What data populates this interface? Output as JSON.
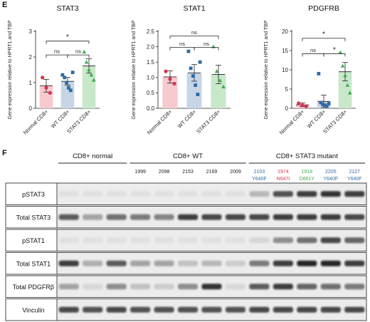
{
  "figure": {
    "panel_e_label": "E",
    "panel_f_label": "F"
  },
  "colors": {
    "normal_fill": "#f6c9cf",
    "normal_point": "#d6324f",
    "wt_fill": "#c6d6e6",
    "wt_point": "#2e6aa4",
    "stat3_fill": "#c7e8c9",
    "stat3_point": "#3fae52",
    "mutant_blue": "#2e6aa4",
    "mutant_red": "#d6324f",
    "mutant_green": "#3fae52"
  },
  "chart_data": [
    {
      "type": "bar",
      "title": "STAT3",
      "ylabel": "Gene expression relative to HPRT1 and TBP",
      "ylim": [
        0,
        3
      ],
      "yticks": [
        "0",
        "1",
        "2",
        "3"
      ],
      "categories": [
        "Normal CD8+",
        "WT CD8+",
        "STAT3 CD8+"
      ],
      "values": [
        0.88,
        1.05,
        1.65
      ],
      "errors": [
        0.25,
        0.15,
        0.28
      ],
      "points": [
        [
          1.2,
          0.8,
          0.6
        ],
        [
          1.3,
          1.2,
          1.0,
          0.8,
          0.7,
          1.4
        ],
        [
          2.2,
          1.8,
          1.5,
          1.3,
          1.1
        ]
      ],
      "comparisons": [
        {
          "from": 0,
          "to": 2,
          "label": "*",
          "y": 2.62
        },
        {
          "from": 0,
          "to": 1,
          "label": "ns",
          "y": 2.08
        },
        {
          "from": 1,
          "to": 2,
          "label": "ns",
          "y": 2.08
        }
      ]
    },
    {
      "type": "bar",
      "title": "STAT1",
      "ylabel": "Gene expression relative to HPRT1 and TBP",
      "ylim": [
        0,
        2.5
      ],
      "yticks": [
        "0.0",
        "0.5",
        "1.0",
        "1.5",
        "2.0",
        "2.5"
      ],
      "categories": [
        "Normal CD8+",
        "WT CD8+",
        "STAT3 CD8+"
      ],
      "values": [
        1.02,
        1.15,
        1.1
      ],
      "errors": [
        0.2,
        0.27,
        0.3
      ],
      "points": [
        [
          1.2,
          0.95,
          0.8
        ],
        [
          1.85,
          1.3,
          1.05,
          0.75,
          0.45,
          1.5
        ],
        [
          2.0,
          1.2,
          0.9,
          0.7
        ]
      ],
      "comparisons": [
        {
          "from": 0,
          "to": 2,
          "label": "ns",
          "y": 2.35
        },
        {
          "from": 0,
          "to": 1,
          "label": "ns",
          "y": 1.98
        },
        {
          "from": 1,
          "to": 2,
          "label": "ns",
          "y": 1.98
        }
      ]
    },
    {
      "type": "bar",
      "title": "PDGFRB",
      "ylabel": "Gene expression relative to HPRT1 and TBP",
      "ylim": [
        0,
        20
      ],
      "yticks": [
        "0",
        "5",
        "10",
        "15",
        "20"
      ],
      "categories": [
        "Normal CD8+",
        "WT CD8+",
        "STAT3 CD8+"
      ],
      "values": [
        0.9,
        1.8,
        9.5
      ],
      "errors": [
        0.5,
        1.6,
        2.4
      ],
      "points": [
        [
          1.3,
          0.8,
          0.5
        ],
        [
          9.0,
          1.5,
          1.0,
          0.8,
          0.5,
          1.2
        ],
        [
          14.5,
          11.0,
          8.5,
          6.0,
          4.0
        ]
      ],
      "comparisons": [
        {
          "from": 0,
          "to": 2,
          "label": "*",
          "y": 18.2
        },
        {
          "from": 0,
          "to": 1,
          "label": "ns",
          "y": 14.2
        },
        {
          "from": 1,
          "to": 2,
          "label": "*",
          "y": 14.2
        }
      ]
    }
  ],
  "blot": {
    "group_headers": [
      {
        "label": "CD8+ normal",
        "lanes": [
          0,
          2
        ]
      },
      {
        "label": "CD8+ WT",
        "lanes": [
          3,
          7
        ]
      },
      {
        "label": "CD8+ STAT3 mutant",
        "lanes": [
          8,
          12
        ]
      }
    ],
    "wt_samples": [
      "1999",
      "2098",
      "2153",
      "2169",
      "2009"
    ],
    "mutant_samples": [
      {
        "id": "2103",
        "mutation": "Y640F",
        "color": "#2e6aa4"
      },
      {
        "id": "1974",
        "mutation": "N647I",
        "color": "#d6324f"
      },
      {
        "id": "1918",
        "mutation": "D661Y",
        "color": "#3fae52"
      },
      {
        "id": "2205",
        "mutation": "Y640F",
        "color": "#2e6aa4"
      },
      {
        "id": "2127",
        "mutation": "Y640F",
        "color": "#2e6aa4"
      }
    ],
    "rows": [
      {
        "label": "pSTAT3",
        "intensity": [
          0.05,
          0.05,
          0.05,
          0.05,
          0.05,
          0.05,
          0.05,
          0.05,
          0.25,
          0.75,
          0.85,
          0.9,
          0.85
        ]
      },
      {
        "label": "Total STAT3",
        "intensity": [
          0.7,
          0.35,
          0.6,
          0.55,
          0.5,
          0.85,
          0.8,
          0.8,
          0.8,
          0.85,
          0.85,
          0.85,
          0.8
        ]
      },
      {
        "label": "pSTAT1",
        "intensity": [
          0.05,
          0.05,
          0.05,
          0.05,
          0.05,
          0.05,
          0.05,
          0.05,
          0.1,
          0.45,
          0.6,
          0.8,
          0.65
        ]
      },
      {
        "label": "Total STAT1",
        "intensity": [
          0.85,
          0.3,
          0.7,
          0.35,
          0.35,
          0.2,
          0.25,
          0.15,
          0.55,
          0.85,
          0.95,
          0.95,
          0.85
        ]
      },
      {
        "label": "Total PDGFRβ",
        "intensity": [
          0.35,
          0.1,
          0.45,
          0.2,
          0.15,
          0.45,
          0.9,
          0.1,
          0.7,
          0.85,
          0.65,
          0.6,
          0.55
        ]
      },
      {
        "label": "Vinculin",
        "intensity": [
          0.8,
          0.75,
          0.8,
          0.75,
          0.75,
          0.75,
          0.75,
          0.75,
          0.8,
          0.8,
          0.8,
          0.8,
          0.8
        ]
      }
    ]
  }
}
